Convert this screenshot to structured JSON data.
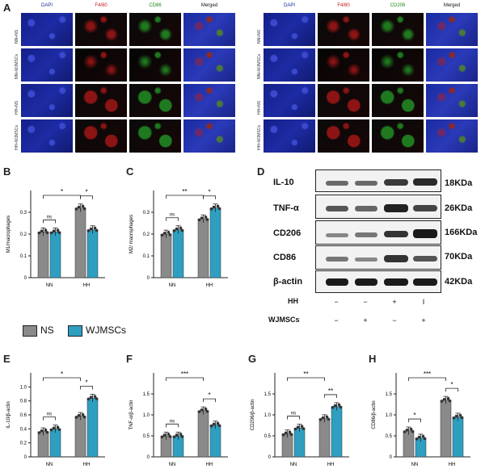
{
  "panels": {
    "A": "A",
    "B": "B",
    "C": "C",
    "D": "D",
    "E": "E",
    "F": "F",
    "G": "G",
    "H": "H"
  },
  "microscopy": {
    "left": {
      "columns": [
        "DAPI",
        "F4/80",
        "CD86",
        "Merged"
      ],
      "rows": [
        "NN+NS",
        "NN+WJMSCs",
        "HH+NS",
        "HH+WJMSCs"
      ]
    },
    "right": {
      "columns": [
        "DAPI",
        "F4/80",
        "CD206",
        "Merged"
      ],
      "rows": [
        "NN+NS",
        "NN+WJMSCs",
        "HH+NS",
        "HH+WJMSCs"
      ]
    },
    "colors": {
      "dapi": "#1a2a9c",
      "f480": "#8c1414",
      "cd": "#1f7a1f",
      "dark": "#050505"
    }
  },
  "legend": {
    "ns": "NS",
    "wj": "WJMSCs",
    "ns_color": "#8a8a8a",
    "wj_color": "#2e9fc0"
  },
  "western": {
    "proteins": [
      "IL-10",
      "TNF-α",
      "CD206",
      "CD86",
      "β-actin"
    ],
    "weights": [
      "18KDa",
      "26KDa",
      "166KDa",
      "70KDa",
      "42KDa"
    ],
    "treat_labels": [
      "HH",
      "WJMSCs"
    ],
    "hh_signs": [
      "−",
      "−",
      "+",
      "I"
    ],
    "wj_signs": [
      "−",
      "+",
      "−",
      "+"
    ]
  },
  "chart_data": [
    {
      "id": "B",
      "type": "bar",
      "categories": [
        "NN",
        "HH"
      ],
      "ylabel": "M1/macrophages",
      "ylim": [
        0,
        0.4
      ],
      "yticks": [
        "0",
        "0.1",
        "0.2",
        "0.3"
      ],
      "series": [
        {
          "name": "NS",
          "values": [
            0.21,
            0.32
          ]
        },
        {
          "name": "WJMSCs",
          "values": [
            0.21,
            0.22
          ]
        }
      ],
      "sig": {
        "top": "*",
        "left": "ns",
        "right": "*"
      }
    },
    {
      "id": "C",
      "type": "bar",
      "categories": [
        "NN",
        "HH"
      ],
      "ylabel": "M2/ macrophages",
      "ylim": [
        0,
        0.4
      ],
      "yticks": [
        "0",
        "0.1",
        "0.2",
        "0.3"
      ],
      "series": [
        {
          "name": "NS",
          "values": [
            0.2,
            0.27
          ]
        },
        {
          "name": "WJMSCs",
          "values": [
            0.22,
            0.32
          ]
        }
      ],
      "sig": {
        "top": "**",
        "left": "ns",
        "right": "*"
      }
    },
    {
      "id": "E",
      "type": "bar",
      "categories": [
        "NN",
        "HH"
      ],
      "ylabel": "IL-10/β-actin",
      "ylim": [
        0,
        1.2
      ],
      "yticks": [
        "0",
        "0.2",
        "0.4",
        "0.6",
        "0.8",
        "1.0"
      ],
      "series": [
        {
          "name": "NS",
          "values": [
            0.36,
            0.58
          ]
        },
        {
          "name": "WJMSCs",
          "values": [
            0.4,
            0.84
          ]
        }
      ],
      "sig": {
        "top": "*",
        "left": "ns",
        "right": "*"
      }
    },
    {
      "id": "F",
      "type": "bar",
      "categories": [
        "NN",
        "HH"
      ],
      "ylabel": "TNF-α/β-actin",
      "ylim": [
        0,
        2.0
      ],
      "yticks": [
        "0",
        "0.5",
        "1.0",
        "1.5"
      ],
      "series": [
        {
          "name": "NS",
          "values": [
            0.5,
            1.1
          ]
        },
        {
          "name": "WJMSCs",
          "values": [
            0.5,
            0.76
          ]
        }
      ],
      "sig": {
        "top": "***",
        "left": "ns",
        "right": "*"
      }
    },
    {
      "id": "G",
      "type": "bar",
      "categories": [
        "NN",
        "HH"
      ],
      "ylabel": "CD206/β-actin",
      "ylim": [
        0,
        1.6
      ],
      "yticks": [
        "0",
        "0.5",
        "1.0",
        "1.5"
      ],
      "series": [
        {
          "name": "NS",
          "values": [
            0.44,
            0.73
          ]
        },
        {
          "name": "WJMSCs",
          "values": [
            0.55,
            0.96
          ]
        }
      ],
      "sig": {
        "top": "**",
        "left": "ns",
        "right": "**"
      }
    },
    {
      "id": "H",
      "type": "bar",
      "categories": [
        "NN",
        "HH"
      ],
      "ylabel": "CD86/β-actin",
      "ylim": [
        0,
        2.0
      ],
      "yticks": [
        "0",
        "0.5",
        "1.0",
        "1.5"
      ],
      "series": [
        {
          "name": "NS",
          "values": [
            0.62,
            1.35
          ]
        },
        {
          "name": "WJMSCs",
          "values": [
            0.45,
            0.95
          ]
        }
      ],
      "sig": {
        "top": "***",
        "left": "*",
        "right": "*"
      }
    }
  ]
}
